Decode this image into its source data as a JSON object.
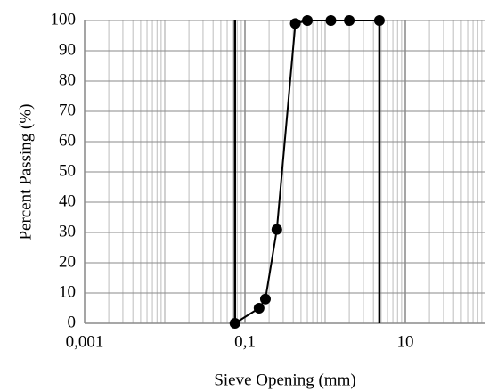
{
  "chart_data": {
    "type": "line",
    "x_label": "Sieve Opening (mm)",
    "y_label": "Percent Passing (%)",
    "x": [
      0.075,
      0.15,
      0.18,
      0.25,
      0.425,
      0.6,
      1.18,
      2,
      4.75
    ],
    "series": [
      {
        "color": "#000000",
        "values": [
          0,
          5,
          8,
          31,
          99,
          100,
          100,
          100,
          100
        ]
      }
    ],
    "xscale": "log",
    "xlim": [
      0.001,
      100
    ],
    "xticks": [
      {
        "value": 0.001,
        "label": "0,001"
      },
      {
        "value": 0.1,
        "label": "0,1"
      },
      10
    ],
    "ylim": [
      0,
      100
    ],
    "yticks": [
      0,
      10,
      20,
      30,
      40,
      50,
      60,
      70,
      80,
      90,
      100
    ],
    "vlines": [
      0.075,
      4.75
    ],
    "grid": true
  }
}
